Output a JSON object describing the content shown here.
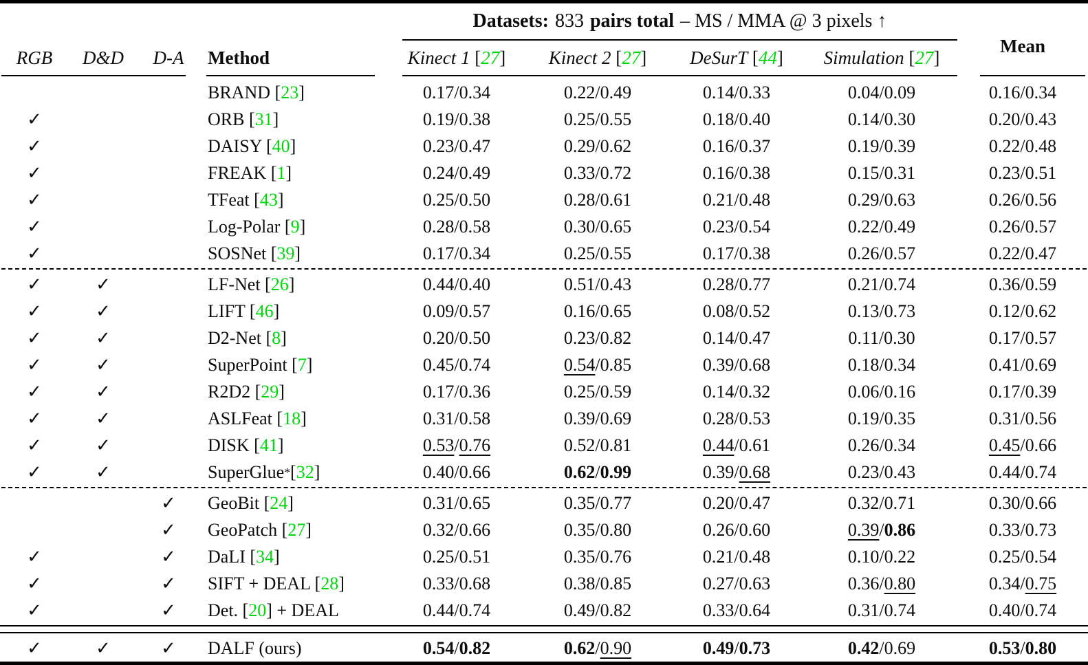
{
  "table": {
    "title": {
      "label": "Datasets:",
      "count": "833",
      "pairs": "pairs total",
      "metric": "– MS / MMA @ 3 pixels ↑"
    },
    "columns": {
      "rgb": "RGB",
      "dd": "D&D",
      "da": "D-A",
      "method": "Method",
      "mean": "Mean",
      "datasets": [
        {
          "name": "Kinect 1",
          "cite": "27"
        },
        {
          "name": "Kinect 2",
          "cite": "27"
        },
        {
          "name": "DeSurT",
          "cite": "44"
        },
        {
          "name": "Simulation",
          "cite": "27"
        }
      ]
    },
    "checkmark": "✓",
    "value_separator": " / ",
    "brackets": {
      "open": "[",
      "close": "]"
    },
    "accent_green": "#00d40e",
    "separators": [
      "dashed",
      "dashed",
      "double"
    ],
    "sections": [
      {
        "rows": [
          {
            "rgb": false,
            "dd": false,
            "da": false,
            "method": {
              "pre": "BRAND",
              "cite": "23",
              "post": ""
            },
            "cells": [
              [
                "0.17",
                "",
                "0.34",
                ""
              ],
              [
                "0.22",
                "",
                "0.49",
                ""
              ],
              [
                "0.14",
                "",
                "0.33",
                ""
              ],
              [
                "0.04",
                "",
                "0.09",
                ""
              ],
              [
                "0.16",
                "",
                "0.34",
                ""
              ]
            ]
          },
          {
            "rgb": true,
            "dd": false,
            "da": false,
            "method": {
              "pre": "ORB",
              "cite": "31",
              "post": ""
            },
            "cells": [
              [
                "0.19",
                "",
                "0.38",
                ""
              ],
              [
                "0.25",
                "",
                "0.55",
                ""
              ],
              [
                "0.18",
                "",
                "0.40",
                ""
              ],
              [
                "0.14",
                "",
                "0.30",
                ""
              ],
              [
                "0.20",
                "",
                "0.43",
                ""
              ]
            ]
          },
          {
            "rgb": true,
            "dd": false,
            "da": false,
            "method": {
              "pre": "DAISY",
              "cite": "40",
              "post": ""
            },
            "cells": [
              [
                "0.23",
                "",
                "0.47",
                ""
              ],
              [
                "0.29",
                "",
                "0.62",
                ""
              ],
              [
                "0.16",
                "",
                "0.37",
                ""
              ],
              [
                "0.19",
                "",
                "0.39",
                ""
              ],
              [
                "0.22",
                "",
                "0.48",
                ""
              ]
            ]
          },
          {
            "rgb": true,
            "dd": false,
            "da": false,
            "method": {
              "pre": "FREAK",
              "cite": "1",
              "post": ""
            },
            "cells": [
              [
                "0.24",
                "",
                "0.49",
                ""
              ],
              [
                "0.33",
                "",
                "0.72",
                ""
              ],
              [
                "0.16",
                "",
                "0.38",
                ""
              ],
              [
                "0.15",
                "",
                "0.31",
                ""
              ],
              [
                "0.23",
                "",
                "0.51",
                ""
              ]
            ]
          },
          {
            "rgb": true,
            "dd": false,
            "da": false,
            "method": {
              "pre": "TFeat",
              "cite": "43",
              "post": ""
            },
            "cells": [
              [
                "0.25",
                "",
                "0.50",
                ""
              ],
              [
                "0.28",
                "",
                "0.61",
                ""
              ],
              [
                "0.21",
                "",
                "0.48",
                ""
              ],
              [
                "0.29",
                "",
                "0.63",
                ""
              ],
              [
                "0.26",
                "",
                "0.56",
                ""
              ]
            ]
          },
          {
            "rgb": true,
            "dd": false,
            "da": false,
            "method": {
              "pre": "Log-Polar",
              "cite": "9",
              "post": ""
            },
            "cells": [
              [
                "0.28",
                "",
                "0.58",
                ""
              ],
              [
                "0.30",
                "",
                "0.65",
                ""
              ],
              [
                "0.23",
                "",
                "0.54",
                ""
              ],
              [
                "0.22",
                "",
                "0.49",
                ""
              ],
              [
                "0.26",
                "",
                "0.57",
                ""
              ]
            ]
          },
          {
            "rgb": true,
            "dd": false,
            "da": false,
            "method": {
              "pre": "SOSNet",
              "cite": "39",
              "post": ""
            },
            "cells": [
              [
                "0.17",
                "",
                "0.34",
                ""
              ],
              [
                "0.25",
                "",
                "0.55",
                ""
              ],
              [
                "0.17",
                "",
                "0.38",
                ""
              ],
              [
                "0.26",
                "",
                "0.57",
                ""
              ],
              [
                "0.22",
                "",
                "0.47",
                ""
              ]
            ]
          }
        ]
      },
      {
        "rows": [
          {
            "rgb": true,
            "dd": true,
            "da": false,
            "method": {
              "pre": "LF-Net",
              "cite": "26",
              "post": ""
            },
            "cells": [
              [
                "0.44",
                "",
                "0.40",
                ""
              ],
              [
                "0.51",
                "",
                "0.43",
                ""
              ],
              [
                "0.28",
                "",
                "0.77",
                ""
              ],
              [
                "0.21",
                "",
                "0.74",
                ""
              ],
              [
                "0.36",
                "",
                "0.59",
                ""
              ]
            ]
          },
          {
            "rgb": true,
            "dd": true,
            "da": false,
            "method": {
              "pre": "LIFT",
              "cite": "46",
              "post": ""
            },
            "cells": [
              [
                "0.09",
                "",
                "0.57",
                ""
              ],
              [
                "0.16",
                "",
                "0.65",
                ""
              ],
              [
                "0.08",
                "",
                "0.52",
                ""
              ],
              [
                "0.13",
                "",
                "0.73",
                ""
              ],
              [
                "0.12",
                "",
                "0.62",
                ""
              ]
            ]
          },
          {
            "rgb": true,
            "dd": true,
            "da": false,
            "method": {
              "pre": "D2-Net",
              "cite": "8",
              "post": ""
            },
            "cells": [
              [
                "0.20",
                "",
                "0.50",
                ""
              ],
              [
                "0.23",
                "",
                "0.82",
                ""
              ],
              [
                "0.14",
                "",
                "0.47",
                ""
              ],
              [
                "0.11",
                "",
                "0.30",
                ""
              ],
              [
                "0.17",
                "",
                "0.57",
                ""
              ]
            ]
          },
          {
            "rgb": true,
            "dd": true,
            "da": false,
            "method": {
              "pre": "SuperPoint",
              "cite": "7",
              "post": ""
            },
            "cells": [
              [
                "0.45",
                "",
                "0.74",
                ""
              ],
              [
                "0.54",
                "u",
                "0.85",
                ""
              ],
              [
                "0.39",
                "",
                "0.68",
                ""
              ],
              [
                "0.18",
                "",
                "0.34",
                ""
              ],
              [
                "0.41",
                "",
                "0.69",
                ""
              ]
            ]
          },
          {
            "rgb": true,
            "dd": true,
            "da": false,
            "method": {
              "pre": "R2D2",
              "cite": "29",
              "post": ""
            },
            "cells": [
              [
                "0.17",
                "",
                "0.36",
                ""
              ],
              [
                "0.25",
                "",
                "0.59",
                ""
              ],
              [
                "0.14",
                "",
                "0.32",
                ""
              ],
              [
                "0.06",
                "",
                "0.16",
                ""
              ],
              [
                "0.17",
                "",
                "0.39",
                ""
              ]
            ]
          },
          {
            "rgb": true,
            "dd": true,
            "da": false,
            "method": {
              "pre": "ASLFeat",
              "cite": "18",
              "post": ""
            },
            "cells": [
              [
                "0.31",
                "",
                "0.58",
                ""
              ],
              [
                "0.39",
                "",
                "0.69",
                ""
              ],
              [
                "0.28",
                "",
                "0.53",
                ""
              ],
              [
                "0.19",
                "",
                "0.35",
                ""
              ],
              [
                "0.31",
                "",
                "0.56",
                ""
              ]
            ]
          },
          {
            "rgb": true,
            "dd": true,
            "da": false,
            "method": {
              "pre": "DISK",
              "cite": "41",
              "post": ""
            },
            "cells": [
              [
                "0.53",
                "u",
                "0.76",
                "u"
              ],
              [
                "0.52",
                "",
                "0.81",
                ""
              ],
              [
                "0.44",
                "u",
                "0.61",
                ""
              ],
              [
                "0.26",
                "",
                "0.34",
                ""
              ],
              [
                "0.45",
                "u",
                "0.66",
                ""
              ]
            ]
          },
          {
            "rgb": true,
            "dd": true,
            "da": false,
            "method": {
              "pre": "SuperGlue",
              "sup": "*",
              "cite": "32",
              "post": ""
            },
            "cells": [
              [
                "0.40",
                "",
                "0.66",
                ""
              ],
              [
                "0.62",
                "b",
                "0.99",
                "b"
              ],
              [
                "0.39",
                "",
                "0.68",
                "u"
              ],
              [
                "0.23",
                "",
                "0.43",
                ""
              ],
              [
                "0.44",
                "",
                "0.74",
                ""
              ]
            ]
          }
        ]
      },
      {
        "rows": [
          {
            "rgb": false,
            "dd": false,
            "da": true,
            "method": {
              "pre": "GeoBit",
              "cite": "24",
              "post": ""
            },
            "cells": [
              [
                "0.31",
                "",
                "0.65",
                ""
              ],
              [
                "0.35",
                "",
                "0.77",
                ""
              ],
              [
                "0.20",
                "",
                "0.47",
                ""
              ],
              [
                "0.32",
                "",
                "0.71",
                ""
              ],
              [
                "0.30",
                "",
                "0.66",
                ""
              ]
            ]
          },
          {
            "rgb": false,
            "dd": false,
            "da": true,
            "method": {
              "pre": "GeoPatch",
              "cite": "27",
              "post": ""
            },
            "cells": [
              [
                "0.32",
                "",
                "0.66",
                ""
              ],
              [
                "0.35",
                "",
                "0.80",
                ""
              ],
              [
                "0.26",
                "",
                "0.60",
                ""
              ],
              [
                "0.39",
                "u",
                "0.86",
                "b"
              ],
              [
                "0.33",
                "",
                "0.73",
                ""
              ]
            ]
          },
          {
            "rgb": true,
            "dd": false,
            "da": true,
            "method": {
              "pre": "DaLI",
              "cite": "34",
              "post": ""
            },
            "cells": [
              [
                "0.25",
                "",
                "0.51",
                ""
              ],
              [
                "0.35",
                "",
                "0.76",
                ""
              ],
              [
                "0.21",
                "",
                "0.48",
                ""
              ],
              [
                "0.10",
                "",
                "0.22",
                ""
              ],
              [
                "0.25",
                "",
                "0.54",
                ""
              ]
            ]
          },
          {
            "rgb": true,
            "dd": false,
            "da": true,
            "method": {
              "pre": "SIFT + DEAL",
              "cite": "28",
              "post": ""
            },
            "cells": [
              [
                "0.33",
                "",
                "0.68",
                ""
              ],
              [
                "0.38",
                "",
                "0.85",
                ""
              ],
              [
                "0.27",
                "",
                "0.63",
                ""
              ],
              [
                "0.36",
                "",
                "0.80",
                "u"
              ],
              [
                "0.34",
                "",
                "0.75",
                "u"
              ]
            ]
          },
          {
            "rgb": true,
            "dd": false,
            "da": true,
            "method": {
              "pre": "Det.",
              "cite": "20",
              "post": " + DEAL"
            },
            "cells": [
              [
                "0.44",
                "",
                "0.74",
                ""
              ],
              [
                "0.49",
                "",
                "0.82",
                ""
              ],
              [
                "0.33",
                "",
                "0.64",
                ""
              ],
              [
                "0.31",
                "",
                "0.74",
                ""
              ],
              [
                "0.40",
                "",
                "0.74",
                ""
              ]
            ]
          }
        ]
      },
      {
        "rows": [
          {
            "rgb": true,
            "dd": true,
            "da": true,
            "method": {
              "pre": "DALF (ours)",
              "cite": null,
              "post": ""
            },
            "cells": [
              [
                "0.54",
                "b",
                "0.82",
                "b"
              ],
              [
                "0.62",
                "b",
                "0.90",
                "u"
              ],
              [
                "0.49",
                "b",
                "0.73",
                "b"
              ],
              [
                "0.42",
                "b",
                "0.69",
                ""
              ],
              [
                "0.53",
                "b",
                "0.80",
                "b"
              ]
            ]
          }
        ]
      }
    ]
  }
}
